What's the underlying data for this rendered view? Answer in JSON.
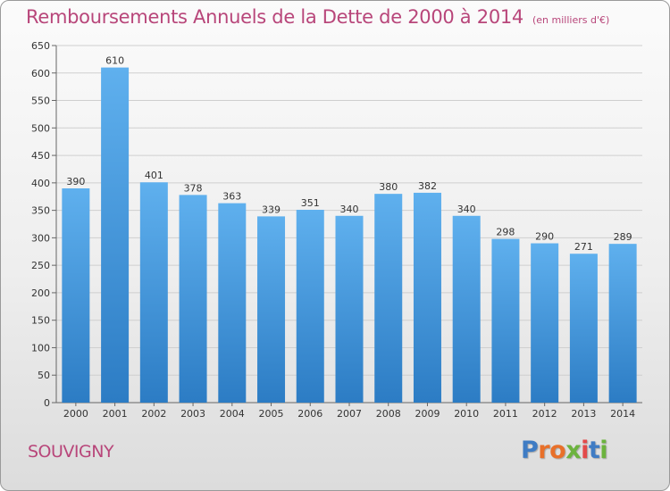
{
  "header": {
    "title": "Remboursements Annuels de la Dette de 2000 à 2014",
    "unit": "(en milliers d'€)"
  },
  "footer": {
    "commune": "SOUVIGNY",
    "brand": {
      "name": "Proxiti",
      "letter_colors": [
        "#3f7cc4",
        "#e8702a",
        "#e8702a",
        "#6cb33e",
        "#e34a4a",
        "#3f7cc4",
        "#6cb33e"
      ]
    }
  },
  "chart_data": {
    "type": "bar",
    "title": "Remboursements Annuels de la Dette de 2000 à 2014",
    "subtitle": "(en milliers d'€)",
    "xlabel": "",
    "ylabel": "",
    "categories": [
      "2000",
      "2001",
      "2002",
      "2003",
      "2004",
      "2005",
      "2006",
      "2007",
      "2008",
      "2009",
      "2010",
      "2011",
      "2012",
      "2013",
      "2014"
    ],
    "values": [
      390,
      610,
      401,
      378,
      363,
      339,
      351,
      340,
      380,
      382,
      340,
      298,
      290,
      271,
      289
    ],
    "ylim": [
      0,
      650
    ],
    "yticks": [
      0,
      50,
      100,
      150,
      200,
      250,
      300,
      350,
      400,
      450,
      500,
      550,
      600,
      650
    ],
    "grid": true,
    "data_labels": true,
    "bar_color": "#4a98dc"
  }
}
